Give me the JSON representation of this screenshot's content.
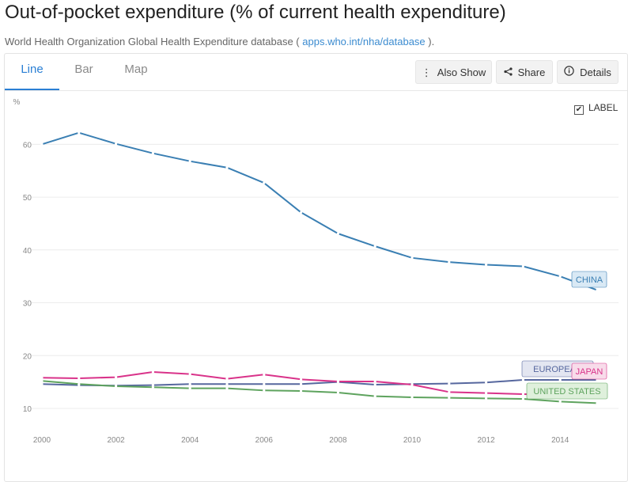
{
  "page": {
    "title": "Out-of-pocket expenditure (% of current health expenditure)",
    "source_prefix": "World Health Organization Global Health Expenditure database ( ",
    "source_link": "apps.who.int/nha/database",
    "source_suffix": " )."
  },
  "tabs": [
    {
      "label": "Line",
      "active": true
    },
    {
      "label": "Bar",
      "active": false
    },
    {
      "label": "Map",
      "active": false
    }
  ],
  "toolbar": {
    "also_show": "Also Show",
    "share": "Share",
    "details": "Details"
  },
  "label_toggle": {
    "label": "LABEL",
    "checked": true,
    "mark": "✔"
  },
  "chart_data": {
    "type": "line",
    "ylabel": "%",
    "xlim": [
      2000,
      2015
    ],
    "ylim": [
      10,
      62
    ],
    "x_ticks": [
      2000,
      2002,
      2004,
      2006,
      2008,
      2010,
      2012,
      2014
    ],
    "y_ticks": [
      10,
      20,
      30,
      40,
      50,
      60
    ],
    "grid": "horizontal",
    "x": [
      2000,
      2001,
      2002,
      2003,
      2004,
      2005,
      2006,
      2007,
      2008,
      2009,
      2010,
      2011,
      2012,
      2013,
      2014,
      2015
    ],
    "series": [
      {
        "name": "CHINA",
        "color": "#3a7fb3",
        "label_bg": "#d9e9f5",
        "values": [
          60.0,
          62.2,
          60.1,
          58.3,
          56.8,
          55.6,
          52.7,
          47.1,
          43.1,
          40.7,
          38.5,
          37.7,
          37.2,
          36.9,
          35.0,
          32.4
        ]
      },
      {
        "name": "EUROPEAN",
        "color": "#56679e",
        "label_bg": "#e3e6f1",
        "values": [
          14.6,
          14.4,
          14.3,
          14.4,
          14.6,
          14.6,
          14.6,
          14.6,
          15.0,
          14.5,
          14.6,
          14.7,
          14.9,
          15.4,
          15.4,
          15.4
        ]
      },
      {
        "name": "JAPAN",
        "color": "#d9338a",
        "label_bg": "#f8dcea",
        "values": [
          15.8,
          15.7,
          15.9,
          16.9,
          16.5,
          15.6,
          16.4,
          15.5,
          15.1,
          15.1,
          14.5,
          13.1,
          12.9,
          12.7,
          12.6,
          12.6
        ]
      },
      {
        "name": "UNITED STATES",
        "color": "#5ea35e",
        "label_bg": "#dff0dc",
        "values": [
          15.2,
          14.6,
          14.2,
          14.0,
          13.8,
          13.8,
          13.4,
          13.3,
          13.0,
          12.3,
          12.1,
          12.0,
          11.9,
          11.8,
          11.3,
          11.0
        ]
      }
    ]
  }
}
